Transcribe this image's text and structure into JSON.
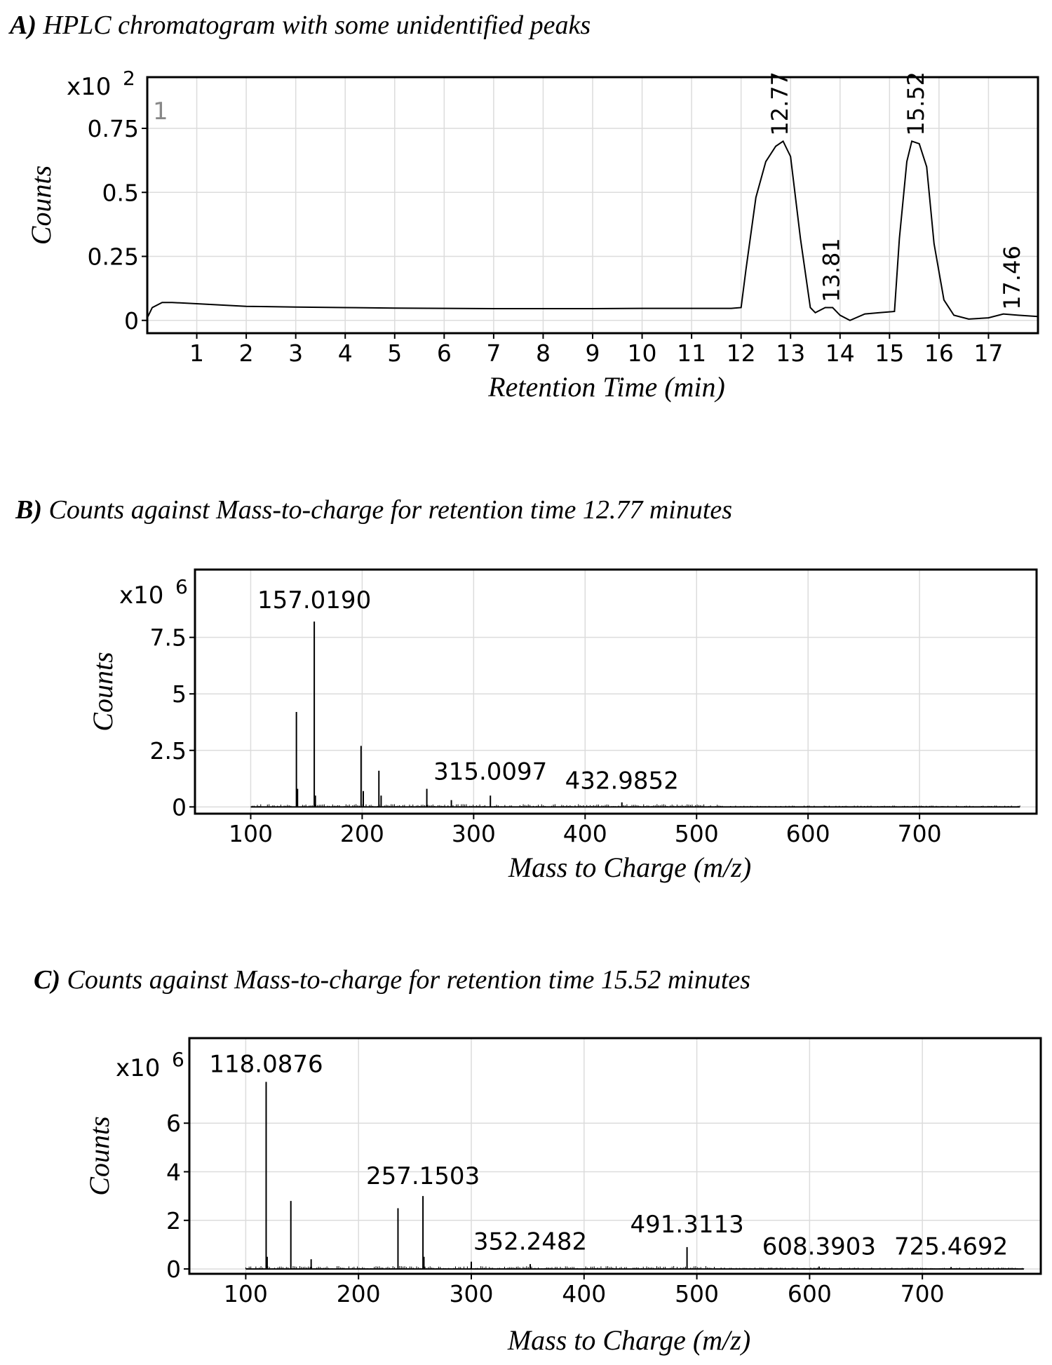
{
  "chart_data": [
    {
      "id": "A",
      "type": "line",
      "panel_letter": "A)",
      "title": "HPLC  chromatogram with some unidentified peaks",
      "xlabel": "Retention Time (min)",
      "ylabel": "Counts",
      "y_multiplier": "x10",
      "y_exponent": "2",
      "trace_number": "1",
      "xlim": [
        0,
        18
      ],
      "ylim": [
        -0.05,
        0.95
      ],
      "x_ticks": [
        1,
        2,
        3,
        4,
        5,
        6,
        7,
        8,
        9,
        10,
        11,
        12,
        13,
        14,
        15,
        16,
        17
      ],
      "x_tick_labels": [
        "1",
        "2",
        "3",
        "4",
        "5",
        "6",
        "7",
        "8",
        "9",
        "10",
        "11",
        "12",
        "13",
        "14",
        "15",
        "16",
        "17"
      ],
      "y_ticks": [
        0,
        0.25,
        0.5,
        0.75
      ],
      "y_tick_labels": [
        "0",
        "0.25",
        "0.5",
        "0.75"
      ],
      "grid": true,
      "series": [
        {
          "name": "trace",
          "x": [
            0.0,
            0.1,
            0.3,
            0.5,
            1.0,
            2.0,
            3.0,
            4.0,
            5.0,
            6.0,
            7.0,
            8.0,
            9.0,
            10.0,
            11.0,
            11.8,
            12.0,
            12.1,
            12.3,
            12.5,
            12.7,
            12.85,
            13.0,
            13.2,
            13.4,
            13.5,
            13.7,
            13.85,
            14.0,
            14.2,
            14.5,
            14.8,
            15.1,
            15.2,
            15.35,
            15.45,
            15.6,
            15.75,
            15.9,
            16.1,
            16.3,
            16.6,
            17.0,
            17.3,
            17.6,
            18.0
          ],
          "y": [
            0.01,
            0.05,
            0.07,
            0.07,
            0.065,
            0.055,
            0.052,
            0.05,
            0.048,
            0.047,
            0.046,
            0.046,
            0.046,
            0.047,
            0.047,
            0.047,
            0.05,
            0.2,
            0.48,
            0.62,
            0.68,
            0.7,
            0.64,
            0.32,
            0.05,
            0.03,
            0.05,
            0.05,
            0.02,
            0.0,
            0.025,
            0.03,
            0.035,
            0.32,
            0.62,
            0.7,
            0.69,
            0.6,
            0.3,
            0.08,
            0.02,
            0.005,
            0.01,
            0.025,
            0.02,
            0.015
          ]
        }
      ],
      "peak_labels": [
        {
          "text": "12.77",
          "x": 12.77,
          "y": 0.71
        },
        {
          "text": "13.81",
          "x": 13.81,
          "y": 0.06
        },
        {
          "text": "15.52",
          "x": 15.52,
          "y": 0.71
        },
        {
          "text": "17.46",
          "x": 17.46,
          "y": 0.03
        }
      ]
    },
    {
      "id": "B",
      "type": "bar",
      "panel_letter": "B)",
      "title": "Counts against Mass-to-charge for retention time 12.77 minutes",
      "xlabel": "Mass to Charge (m/z)",
      "ylabel": "Counts",
      "y_multiplier": "x10",
      "y_exponent": "6",
      "xlim": [
        50,
        805
      ],
      "ylim": [
        -0.3,
        10.5
      ],
      "x_ticks": [
        100,
        200,
        300,
        400,
        500,
        600,
        700
      ],
      "x_tick_labels": [
        "100",
        "200",
        "300",
        "400",
        "500",
        "600",
        "700"
      ],
      "y_ticks": [
        0,
        2.5,
        5,
        7.5
      ],
      "y_tick_labels": [
        "0",
        "2.5",
        "5",
        "7.5"
      ],
      "grid": true,
      "peaks": [
        {
          "mz": 141,
          "counts": 4.2
        },
        {
          "mz": 142,
          "counts": 0.8
        },
        {
          "mz": 157.019,
          "counts": 8.2
        },
        {
          "mz": 158,
          "counts": 0.5
        },
        {
          "mz": 199,
          "counts": 2.7
        },
        {
          "mz": 201,
          "counts": 0.7
        },
        {
          "mz": 215,
          "counts": 1.6
        },
        {
          "mz": 217,
          "counts": 0.5
        },
        {
          "mz": 258,
          "counts": 0.8
        },
        {
          "mz": 280,
          "counts": 0.3
        },
        {
          "mz": 315.0097,
          "counts": 0.5
        },
        {
          "mz": 432.9852,
          "counts": 0.2
        }
      ],
      "noise": {
        "min": 100,
        "max": 790,
        "level": 0.12
      },
      "peak_labels": [
        {
          "text": "157.0190",
          "mz": 157.019,
          "counts": 8.8
        },
        {
          "text": "315.0097",
          "mz": 315.0097,
          "counts": 1.2
        },
        {
          "text": "432.9852",
          "mz": 432.9852,
          "counts": 0.8
        }
      ]
    },
    {
      "id": "C",
      "type": "bar",
      "panel_letter": "C)",
      "title": "Counts against Mass-to-charge for retention time 15.52 minutes",
      "xlabel": "Mass to Charge (m/z)",
      "ylabel": "Counts",
      "y_multiplier": "x10",
      "y_exponent": "6",
      "xlim": [
        50,
        805
      ],
      "ylim": [
        -0.2,
        9.5
      ],
      "x_ticks": [
        100,
        200,
        300,
        400,
        500,
        600,
        700
      ],
      "x_tick_labels": [
        "100",
        "200",
        "300",
        "400",
        "500",
        "600",
        "700"
      ],
      "y_ticks": [
        0,
        2,
        4,
        6
      ],
      "y_tick_labels": [
        "0",
        "2",
        "4",
        "6"
      ],
      "grid": true,
      "peaks": [
        {
          "mz": 118.0876,
          "counts": 7.7
        },
        {
          "mz": 119,
          "counts": 0.5
        },
        {
          "mz": 140,
          "counts": 2.8
        },
        {
          "mz": 158,
          "counts": 0.4
        },
        {
          "mz": 235,
          "counts": 2.5
        },
        {
          "mz": 257.1503,
          "counts": 3.0
        },
        {
          "mz": 258,
          "counts": 0.5
        },
        {
          "mz": 300,
          "counts": 0.3
        },
        {
          "mz": 352.2482,
          "counts": 0.2
        },
        {
          "mz": 491.3113,
          "counts": 0.9
        },
        {
          "mz": 608.3903,
          "counts": 0.1
        },
        {
          "mz": 725.4692,
          "counts": 0.08
        }
      ],
      "noise": {
        "min": 100,
        "max": 790,
        "level": 0.12
      },
      "peak_labels": [
        {
          "text": "118.0876",
          "mz": 118.0876,
          "counts": 8.1
        },
        {
          "text": "257.1503",
          "mz": 257.1503,
          "counts": 3.5
        },
        {
          "text": "352.2482",
          "mz": 352.2482,
          "counts": 0.8
        },
        {
          "text": "491.3113",
          "mz": 491.3113,
          "counts": 1.5
        },
        {
          "text": "608.3903",
          "mz": 608.3903,
          "counts": 0.6
        },
        {
          "text": "725.4692",
          "mz": 725.4692,
          "counts": 0.6
        }
      ]
    }
  ]
}
